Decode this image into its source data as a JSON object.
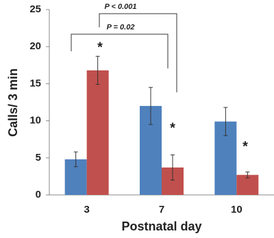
{
  "chart_data": {
    "type": "bar",
    "xlabel": "Postnatal day",
    "ylabel": "Calls/ 3 min",
    "categories": [
      "3",
      "7",
      "10"
    ],
    "series": [
      {
        "color": "#4f81bd",
        "values": [
          4.8,
          12.0,
          9.9
        ],
        "errors": [
          1.0,
          2.5,
          1.9
        ]
      },
      {
        "color": "#c0504d",
        "values": [
          16.8,
          3.7,
          2.7
        ],
        "errors": [
          1.9,
          1.7,
          0.4
        ]
      }
    ],
    "ylim": [
      0,
      25
    ],
    "yticks": [
      0,
      5,
      10,
      15,
      20,
      25
    ],
    "annotations": [
      "*",
      "*",
      "*",
      "P = 0.02",
      "P < 0.001"
    ]
  }
}
